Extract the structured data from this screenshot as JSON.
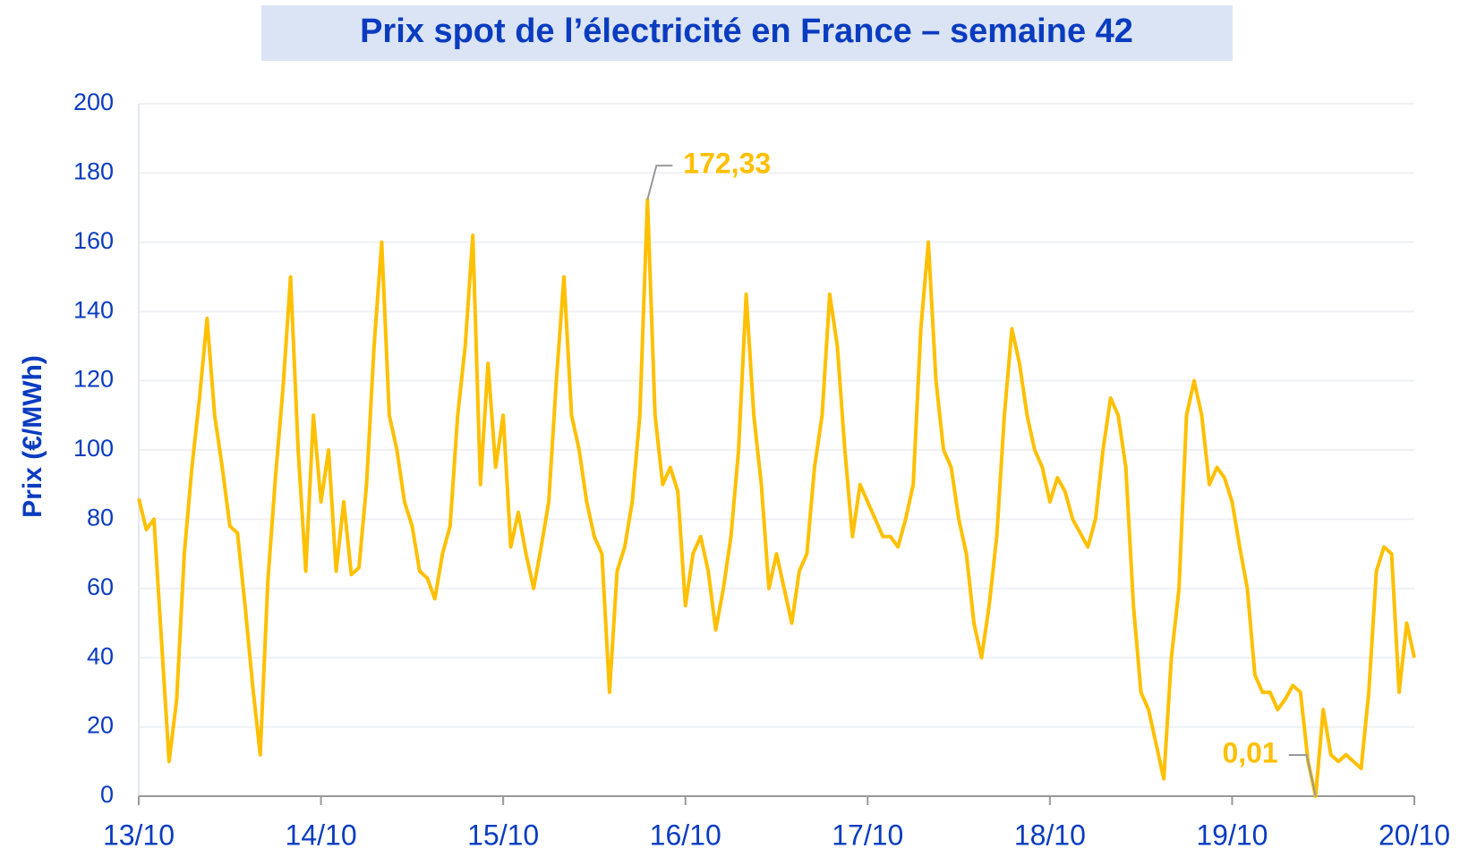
{
  "chart_data": {
    "type": "line",
    "title": "Prix spot de l’électricité en France – semaine 42",
    "y_label": "Prix (€/MWh)",
    "color": "#ffc000",
    "grid": true,
    "xlim": [
      0,
      168
    ],
    "xticks": [
      {
        "value": 0,
        "label": "13/10"
      },
      {
        "value": 24,
        "label": "14/10"
      },
      {
        "value": 48,
        "label": "15/10"
      },
      {
        "value": 72,
        "label": "16/10"
      },
      {
        "value": 96,
        "label": "17/10"
      },
      {
        "value": 120,
        "label": "18/10"
      },
      {
        "value": 144,
        "label": "19/10"
      },
      {
        "value": 168,
        "label": "20/10"
      }
    ],
    "ylim": [
      0,
      200
    ],
    "yticks": [
      0,
      20,
      40,
      60,
      80,
      100,
      120,
      140,
      160,
      180,
      200
    ],
    "values": [
      86,
      77,
      80,
      45,
      10,
      28,
      70,
      95,
      115,
      138,
      110,
      95,
      78,
      76,
      55,
      32,
      12,
      62,
      92,
      118,
      150,
      100,
      65,
      110,
      85,
      100,
      65,
      85,
      64,
      66,
      90,
      130,
      160,
      110,
      100,
      85,
      78,
      65,
      63,
      57,
      70,
      78,
      110,
      130,
      162,
      90,
      125,
      95,
      110,
      72,
      82,
      70,
      60,
      72,
      85,
      120,
      150,
      110,
      100,
      85,
      75,
      70,
      30,
      65,
      72,
      85,
      110,
      172.33,
      110,
      90,
      95,
      88,
      55,
      70,
      75,
      65,
      48,
      60,
      75,
      100,
      145,
      110,
      90,
      60,
      70,
      60,
      50,
      65,
      70,
      95,
      110,
      145,
      130,
      100,
      75,
      90,
      85,
      80,
      75,
      75,
      72,
      80,
      90,
      135,
      160,
      120,
      100,
      95,
      80,
      70,
      50,
      40,
      55,
      75,
      110,
      135,
      125,
      110,
      100,
      95,
      85,
      92,
      88,
      80,
      76,
      72,
      80,
      100,
      115,
      110,
      95,
      55,
      30,
      25,
      15,
      5,
      40,
      60,
      110,
      120,
      110,
      90,
      95,
      92,
      85,
      72,
      60,
      35,
      30,
      30,
      25,
      28,
      32,
      30,
      10,
      0.01,
      25,
      12,
      10,
      12,
      10,
      8,
      30,
      65,
      72,
      70,
      30,
      50,
      40
    ],
    "annotations": [
      {
        "label": "172,33",
        "value": 172.33
      },
      {
        "label": "0,01",
        "value": 0.01
      }
    ]
  }
}
